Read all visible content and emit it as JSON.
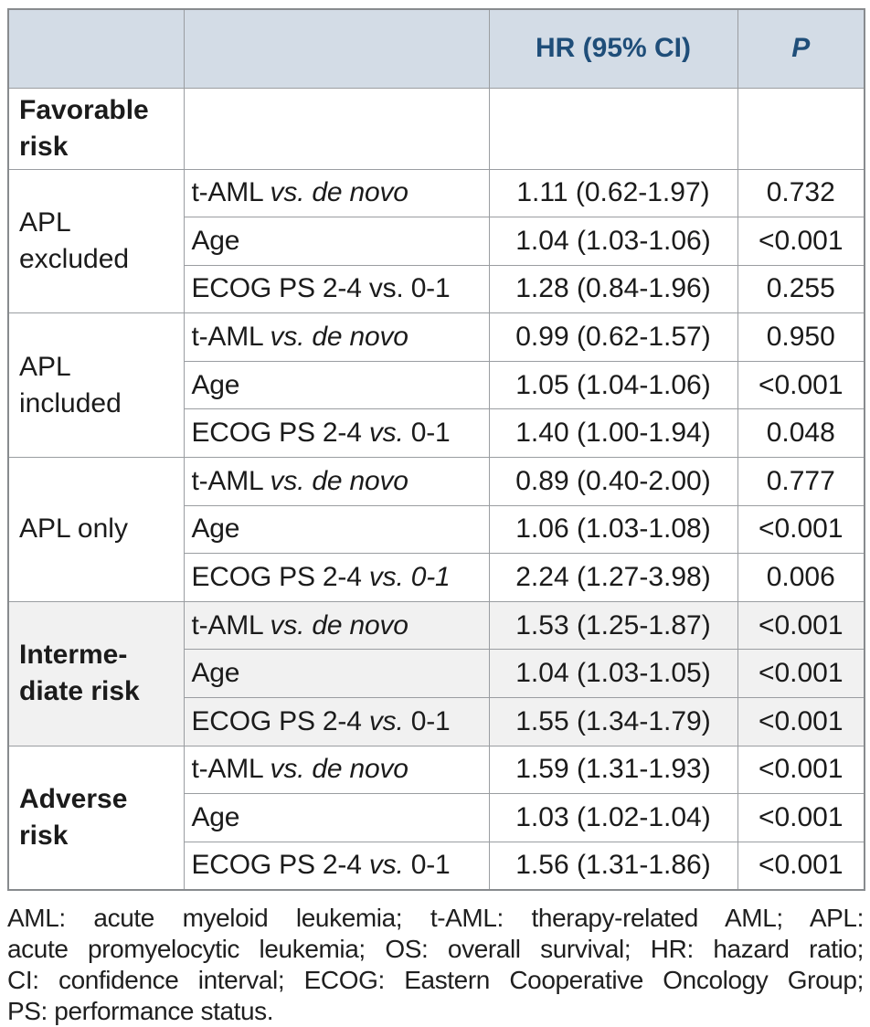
{
  "colors": {
    "header_bg": "#d3dce6",
    "header_text": "#1f4e79",
    "shaded_row_bg": "#f1f1f1",
    "border": "#9a9da1",
    "text": "#1b1b1b"
  },
  "header": {
    "hr_ci": "HR (95% CI)",
    "p": "P"
  },
  "groups": [
    {
      "label": "Favorable\nrisk",
      "rows": []
    },
    {
      "label": "APL\nexcluded",
      "rows": [
        {
          "variable": [
            {
              "t": "t-AML "
            },
            {
              "t": "vs. de novo",
              "i": true
            }
          ],
          "hr": "1.11 (0.62-1.97)",
          "p": "0.732"
        },
        {
          "variable": [
            {
              "t": "Age"
            }
          ],
          "hr": "1.04 (1.03-1.06)",
          "p": "<0.001"
        },
        {
          "variable": [
            {
              "t": "ECOG PS 2-4 vs. 0-1"
            }
          ],
          "hr": "1.28 (0.84-1.96)",
          "p": "0.255"
        }
      ]
    },
    {
      "label": "APL\nincluded",
      "rows": [
        {
          "variable": [
            {
              "t": "t-AML "
            },
            {
              "t": "vs. de novo",
              "i": true
            }
          ],
          "hr": "0.99 (0.62-1.57)",
          "p": "0.950"
        },
        {
          "variable": [
            {
              "t": "Age"
            }
          ],
          "hr": "1.05 (1.04-1.06)",
          "p": "<0.001"
        },
        {
          "variable": [
            {
              "t": "ECOG PS 2-4 "
            },
            {
              "t": "vs.",
              "i": true
            },
            {
              "t": " 0-1"
            }
          ],
          "hr": "1.40 (1.00-1.94)",
          "p": "0.048"
        }
      ]
    },
    {
      "label": "APL only",
      "rows": [
        {
          "variable": [
            {
              "t": "t-AML "
            },
            {
              "t": "vs. de novo",
              "i": true
            }
          ],
          "hr": "0.89 (0.40-2.00)",
          "p": "0.777"
        },
        {
          "variable": [
            {
              "t": "Age"
            }
          ],
          "hr": "1.06 (1.03-1.08)",
          "p": "<0.001"
        },
        {
          "variable": [
            {
              "t": "ECOG PS 2-4 "
            },
            {
              "t": "vs. 0-1",
              "i": true
            }
          ],
          "hr": "2.24 (1.27-3.98)",
          "p": "0.006"
        }
      ]
    },
    {
      "label": "Interme-\ndiate risk",
      "shaded": true,
      "rows": [
        {
          "variable": [
            {
              "t": "t-AML "
            },
            {
              "t": "vs. de novo",
              "i": true
            }
          ],
          "hr": "1.53 (1.25-1.87)",
          "p": "<0.001"
        },
        {
          "variable": [
            {
              "t": "Age"
            }
          ],
          "hr": "1.04 (1.03-1.05)",
          "p": "<0.001"
        },
        {
          "variable": [
            {
              "t": "ECOG PS 2-4 "
            },
            {
              "t": "vs.",
              "i": true
            },
            {
              "t": " 0-1"
            }
          ],
          "hr": "1.55 (1.34-1.79)",
          "p": "<0.001"
        }
      ]
    },
    {
      "label": "Adverse\nrisk",
      "rows": [
        {
          "variable": [
            {
              "t": "t-AML "
            },
            {
              "t": "vs. de novo",
              "i": true
            }
          ],
          "hr": "1.59 (1.31-1.93)",
          "p": "<0.001"
        },
        {
          "variable": [
            {
              "t": "Age"
            }
          ],
          "hr": "1.03 (1.02-1.04)",
          "p": "<0.001"
        },
        {
          "variable": [
            {
              "t": "ECOG PS 2-4 "
            },
            {
              "t": "vs.",
              "i": true
            },
            {
              "t": " 0-1"
            }
          ],
          "hr": "1.56 (1.31-1.86)",
          "p": "<0.001"
        }
      ]
    }
  ],
  "footnote": {
    "lines": [
      "AML: acute myeloid leukemia; t-AML: therapy-related AML; APL:",
      "acute promyelocytic leukemia; OS: overall survival; HR: hazard ratio;",
      "CI: confidence interval; ECOG: Eastern Cooperative Oncology Group;",
      "PS: performance status."
    ]
  }
}
